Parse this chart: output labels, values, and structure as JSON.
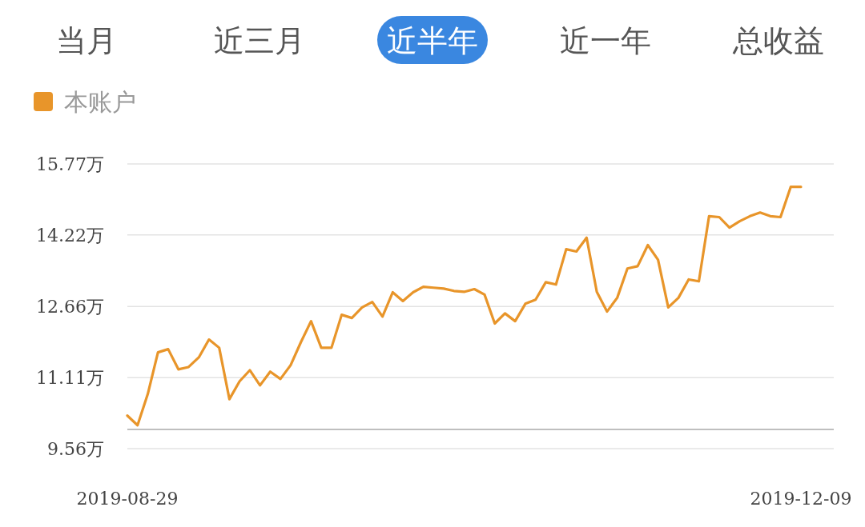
{
  "chart_data": {
    "type": "line",
    "annotations": [
      "当月",
      "近三月",
      "近半年",
      "近一年",
      "总收益"
    ],
    "categories": [
      "2019-08-29",
      null,
      null,
      null,
      null,
      null,
      null,
      null,
      null,
      null,
      null,
      null,
      null,
      null,
      null,
      null,
      null,
      null,
      null,
      null,
      null,
      null,
      null,
      null,
      null,
      null,
      null,
      null,
      null,
      null,
      null,
      null,
      null,
      null,
      null,
      null,
      null,
      null,
      null,
      null,
      null,
      null,
      null,
      null,
      null,
      null,
      null,
      null,
      null,
      null,
      null,
      null,
      null,
      null,
      null,
      null,
      null,
      null,
      null,
      null,
      null,
      null,
      null,
      null,
      null,
      null,
      "2019-12-09"
    ],
    "series": [
      {
        "name": "本账户",
        "color": "#e8952a",
        "values": [
          10.28,
          10.07,
          10.75,
          11.66,
          11.73,
          11.29,
          11.34,
          11.55,
          11.94,
          11.76,
          10.64,
          11.03,
          11.27,
          10.94,
          11.24,
          11.08,
          11.38,
          11.88,
          12.34,
          11.76,
          11.76,
          12.48,
          12.41,
          12.64,
          12.76,
          12.44,
          12.97,
          12.78,
          12.97,
          13.09,
          13.07,
          13.05,
          13.0,
          12.98,
          13.04,
          12.92,
          12.29,
          12.51,
          12.34,
          12.72,
          12.81,
          13.19,
          13.14,
          13.91,
          13.86,
          14.16,
          12.98,
          12.55,
          12.85,
          13.49,
          13.54,
          14.0,
          13.68,
          12.64,
          12.85,
          13.25,
          13.21,
          14.63,
          14.61,
          14.38,
          14.52,
          14.63,
          14.71,
          14.63,
          14.61,
          15.27,
          15.27
        ]
      }
    ],
    "ylim": [
      9.56,
      15.77
    ],
    "yticks": [
      {
        "value": 9.56,
        "label": "9.56万"
      },
      {
        "value": 11.11,
        "label": "11.11万"
      },
      {
        "value": 12.66,
        "label": "12.66万"
      },
      {
        "value": 14.22,
        "label": "14.22万"
      },
      {
        "value": 15.77,
        "label": "15.77万"
      }
    ],
    "ref_lines": [
      {
        "axis": "y",
        "value": 9.98,
        "color": "#aaaaaa"
      }
    ],
    "grid": "y",
    "legend": "top left"
  }
}
